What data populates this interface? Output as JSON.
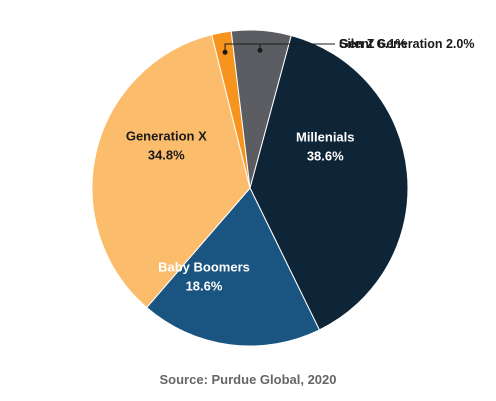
{
  "chart_data": {
    "type": "pie",
    "title": "",
    "slices": [
      {
        "label": "Millenials",
        "value": 38.6,
        "value_label": "38.6%",
        "color": "#0e2437",
        "label_color": "#ffffff"
      },
      {
        "label": "Baby Boomers",
        "value": 18.6,
        "value_label": "18.6%",
        "color": "#1a5480",
        "label_color": "#ffffff"
      },
      {
        "label": "Generation X",
        "value": 34.8,
        "value_label": "34.8%",
        "color": "#fbbd6c",
        "label_color": "#1a1a1a"
      },
      {
        "label": "Silent Generation",
        "value": 2.0,
        "value_label": "2.0%",
        "color": "#f7941d",
        "label_color": "#1a1a1a",
        "callout": "Silent Generation 2.0%"
      },
      {
        "label": "Gen Z",
        "value": 6.1,
        "value_label": "6.1%",
        "color": "#5b5d63",
        "label_color": "#1a1a1a",
        "callout": "Gen Z 6.1%"
      }
    ]
  },
  "source": "Source: Purdue Global, 2020"
}
